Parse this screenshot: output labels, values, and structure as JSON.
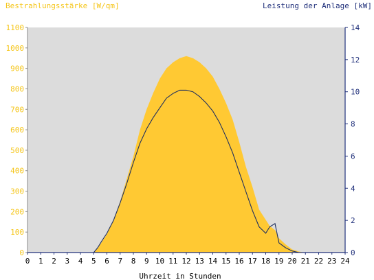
{
  "chart_data": {
    "type": "area",
    "left_axis_title": "Bestrahlungsstärke [W/qm]",
    "right_axis_title": "Leistung der Anlage [kW]",
    "xlabel": "Uhrzeit in Stunden",
    "x_ticks": [
      "0",
      "1",
      "2",
      "3",
      "4",
      "5",
      "6",
      "7",
      "8",
      "9",
      "10",
      "11",
      "12",
      "13",
      "14",
      "15",
      "16",
      "17",
      "18",
      "19",
      "20",
      "21",
      "22",
      "23",
      "24"
    ],
    "left_ticks": [
      "0",
      "100",
      "200",
      "300",
      "400",
      "500",
      "600",
      "700",
      "800",
      "900",
      "1000",
      "1100"
    ],
    "right_ticks": [
      "0",
      "2",
      "4",
      "6",
      "8",
      "10",
      "12",
      "14"
    ],
    "xlim": [
      0,
      24
    ],
    "ylim_left": [
      0,
      1100
    ],
    "ylim_right": [
      0,
      14
    ],
    "colors": {
      "plot_background": "#dcdcdc",
      "irradiance_fill": "#ffc933",
      "power_line": "#1f2f5f",
      "left_axis_text": "#f5c518",
      "right_axis": "#1f2f7a",
      "text": "#000000"
    },
    "series": [
      {
        "axis": "left",
        "style": "area",
        "x": [
          0,
          5,
          5.3,
          5.6,
          6,
          6.5,
          7,
          7.5,
          8,
          8.5,
          9,
          9.5,
          10,
          10.5,
          11,
          11.5,
          12,
          12.5,
          13,
          13.5,
          14,
          14.5,
          15,
          15.5,
          16,
          16.5,
          17,
          17.5,
          18,
          18.3,
          18.7,
          19,
          19.5,
          20,
          20.5,
          21,
          24
        ],
        "values": [
          0,
          0,
          20,
          50,
          90,
          160,
          250,
          360,
          470,
          600,
          700,
          780,
          850,
          900,
          930,
          950,
          960,
          950,
          930,
          900,
          860,
          800,
          730,
          650,
          540,
          420,
          320,
          210,
          160,
          130,
          110,
          70,
          40,
          15,
          5,
          0,
          0
        ]
      },
      {
        "axis": "right",
        "style": "line",
        "x": [
          0,
          5,
          5.3,
          5.6,
          6,
          6.5,
          7,
          7.5,
          8,
          8.5,
          9,
          9.5,
          10,
          10.5,
          11,
          11.5,
          12,
          12.5,
          13,
          13.5,
          14,
          14.5,
          15,
          15.5,
          16,
          16.5,
          17,
          17.5,
          18,
          18.3,
          18.7,
          19,
          19.5,
          20,
          20.5,
          21,
          24
        ],
        "values": [
          0,
          0,
          0.3,
          0.7,
          1.2,
          2.0,
          3.1,
          4.3,
          5.6,
          6.8,
          7.7,
          8.4,
          9.0,
          9.6,
          9.9,
          10.1,
          10.1,
          10.0,
          9.7,
          9.3,
          8.8,
          8.1,
          7.2,
          6.2,
          5.0,
          3.8,
          2.6,
          1.6,
          1.2,
          1.6,
          1.8,
          0.6,
          0.3,
          0.1,
          0,
          0,
          0
        ]
      }
    ]
  }
}
